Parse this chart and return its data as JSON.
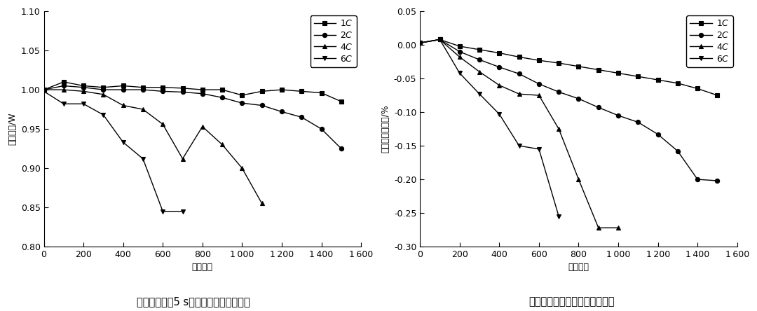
{
  "left_chart": {
    "title": "不同充电倍率5 s放电可用功率变化曲线",
    "xlabel": "循环次数",
    "ylabel": "可用功率/W",
    "ylim": [
      0.8,
      1.1
    ],
    "xlim": [
      0,
      1600
    ],
    "yticks": [
      0.8,
      0.85,
      0.9,
      0.95,
      1.0,
      1.05,
      1.1
    ],
    "ytick_labels": [
      "0.80",
      "0.85",
      "0.90",
      "0.95",
      "1.00",
      "1.05",
      "1.10"
    ],
    "xticks": [
      0,
      200,
      400,
      600,
      800,
      1000,
      1200,
      1400,
      1600
    ],
    "xtick_labels": [
      "0",
      "200",
      "400",
      "600",
      "800",
      "1 000",
      "1 200",
      "1 400",
      "1 600"
    ],
    "series": [
      {
        "label": "1C",
        "marker": "s",
        "x": [
          0,
          100,
          200,
          300,
          400,
          500,
          600,
          700,
          800,
          900,
          1000,
          1100,
          1200,
          1300,
          1400,
          1500
        ],
        "y": [
          1.0,
          1.01,
          1.005,
          1.003,
          1.005,
          1.003,
          1.003,
          1.002,
          1.0,
          1.0,
          0.993,
          0.998,
          1.0,
          0.998,
          0.996,
          0.985
        ]
      },
      {
        "label": "2C",
        "marker": "o",
        "x": [
          0,
          100,
          200,
          300,
          400,
          500,
          600,
          700,
          800,
          900,
          1000,
          1100,
          1200,
          1300,
          1400,
          1500
        ],
        "y": [
          1.0,
          1.005,
          1.003,
          1.0,
          1.0,
          1.0,
          0.998,
          0.997,
          0.995,
          0.99,
          0.983,
          0.98,
          0.972,
          0.965,
          0.95,
          0.925
        ]
      },
      {
        "label": "4C",
        "marker": "^",
        "x": [
          0,
          100,
          200,
          300,
          400,
          500,
          600,
          700,
          800,
          900,
          1000,
          1100
        ],
        "y": [
          1.0,
          1.0,
          0.998,
          0.994,
          0.98,
          0.975,
          0.956,
          0.912,
          0.953,
          0.93,
          0.9,
          0.855
        ]
      },
      {
        "label": "6C",
        "marker": "v",
        "x": [
          0,
          100,
          200,
          300,
          400,
          500,
          600,
          700
        ],
        "y": [
          0.998,
          0.982,
          0.982,
          0.968,
          0.933,
          0.912,
          0.845,
          0.845
        ]
      }
    ]
  },
  "right_chart": {
    "title": "不同充电倍率放电容量变化曲线",
    "xlabel": "循环次数",
    "ylabel": "放电容量衰减率/%",
    "ylim": [
      -0.3,
      0.05
    ],
    "xlim": [
      0,
      1600
    ],
    "yticks": [
      -0.3,
      -0.25,
      -0.2,
      -0.15,
      -0.1,
      -0.05,
      0.0,
      0.05
    ],
    "ytick_labels": [
      "-0.30",
      "-0.25",
      "-0.20",
      "-0.15",
      "-0.10",
      "-0.05",
      "0.00",
      "0.05"
    ],
    "xticks": [
      0,
      200,
      400,
      600,
      800,
      1000,
      1200,
      1400,
      1600
    ],
    "xtick_labels": [
      "0",
      "200",
      "400",
      "600",
      "800",
      "1 000",
      "1 200",
      "1 400",
      "1 600"
    ],
    "series": [
      {
        "label": "1C",
        "marker": "s",
        "x": [
          0,
          100,
          200,
          300,
          400,
          500,
          600,
          700,
          800,
          900,
          1000,
          1100,
          1200,
          1300,
          1400,
          1500
        ],
        "y": [
          0.003,
          0.008,
          -0.002,
          -0.007,
          -0.012,
          -0.018,
          -0.023,
          -0.027,
          -0.032,
          -0.037,
          -0.042,
          -0.047,
          -0.052,
          -0.057,
          -0.065,
          -0.075
        ]
      },
      {
        "label": "2C",
        "marker": "o",
        "x": [
          0,
          100,
          200,
          300,
          400,
          500,
          600,
          700,
          800,
          900,
          1000,
          1100,
          1200,
          1300,
          1400,
          1500
        ],
        "y": [
          0.003,
          0.008,
          -0.01,
          -0.022,
          -0.033,
          -0.043,
          -0.058,
          -0.07,
          -0.08,
          -0.093,
          -0.105,
          -0.115,
          -0.133,
          -0.158,
          -0.2,
          -0.202
        ]
      },
      {
        "label": "4C",
        "marker": "^",
        "x": [
          0,
          100,
          200,
          300,
          400,
          500,
          600,
          700,
          800,
          900,
          1000
        ],
        "y": [
          0.003,
          0.008,
          -0.018,
          -0.04,
          -0.06,
          -0.073,
          -0.075,
          -0.125,
          -0.2,
          -0.272,
          -0.272
        ]
      },
      {
        "label": "6C",
        "marker": "v",
        "x": [
          0,
          100,
          200,
          300,
          400,
          500,
          600,
          700
        ],
        "y": [
          0.003,
          0.008,
          -0.042,
          -0.073,
          -0.103,
          -0.15,
          -0.155,
          -0.255
        ]
      }
    ]
  },
  "line_color": "#000000",
  "bg_color": "#ffffff",
  "font_size": 9,
  "title_font_size": 10.5,
  "legend_font_size": 9
}
